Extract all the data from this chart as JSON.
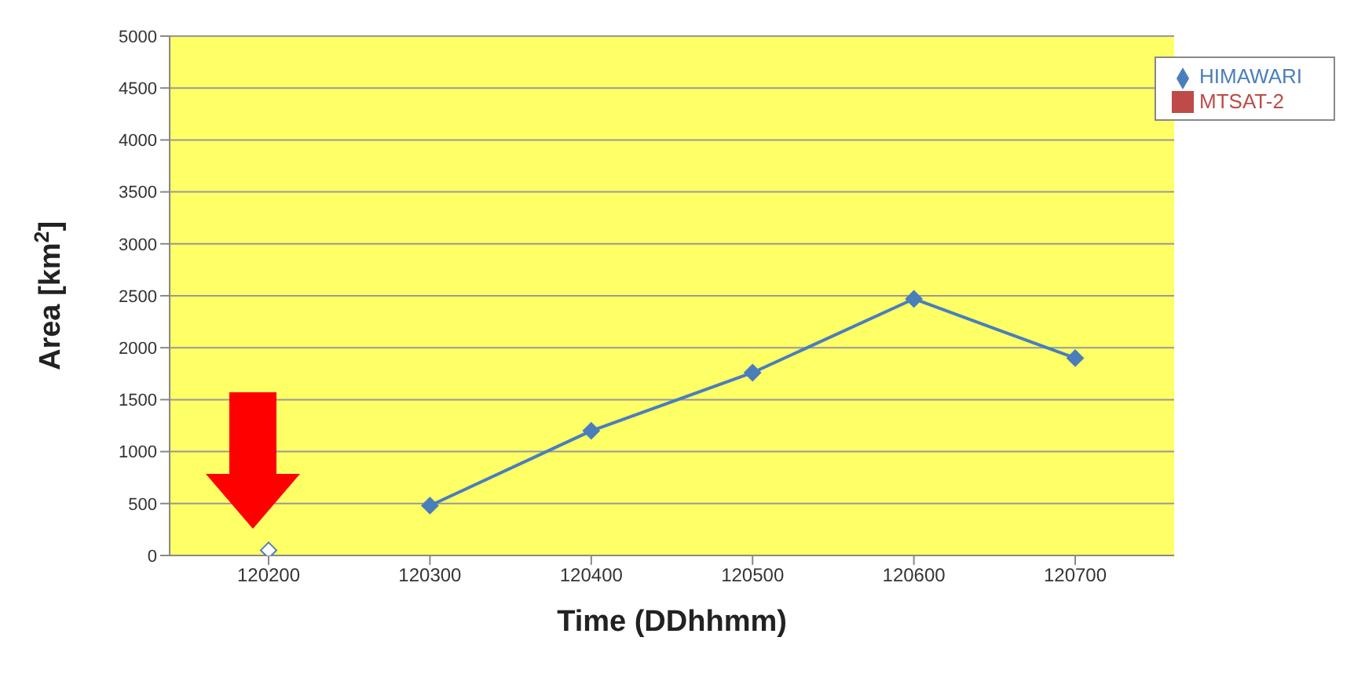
{
  "chart_data": {
    "type": "line",
    "xlabel": "Time (DDhhmm)",
    "ylabel": "Area [km$^{2}$]",
    "categories": [
      "120200",
      "120300",
      "120400",
      "120500",
      "120600",
      "120700"
    ],
    "series": [
      {
        "name": "HIMAWARI",
        "color": "#4a7ebb",
        "marker": "diamond",
        "values": [
          null,
          480,
          1200,
          1760,
          2470,
          1900
        ]
      },
      {
        "name": "MTSAT-2",
        "color": "#be4b48",
        "marker": "square",
        "values": [
          null,
          null,
          null,
          null,
          null,
          null
        ]
      },
      {
        "type": "scatter",
        "color": "#4a7ebb",
        "marker": "diamond",
        "values": [
          50,
          null,
          null,
          null,
          null,
          null
        ]
      }
    ],
    "ylim": [
      0,
      5000
    ],
    "yticks": [
      0,
      500,
      1000,
      1500,
      2000,
      2500,
      3000,
      3500,
      4000,
      4500,
      5000
    ],
    "grid": "y",
    "legend": "top right"
  }
}
